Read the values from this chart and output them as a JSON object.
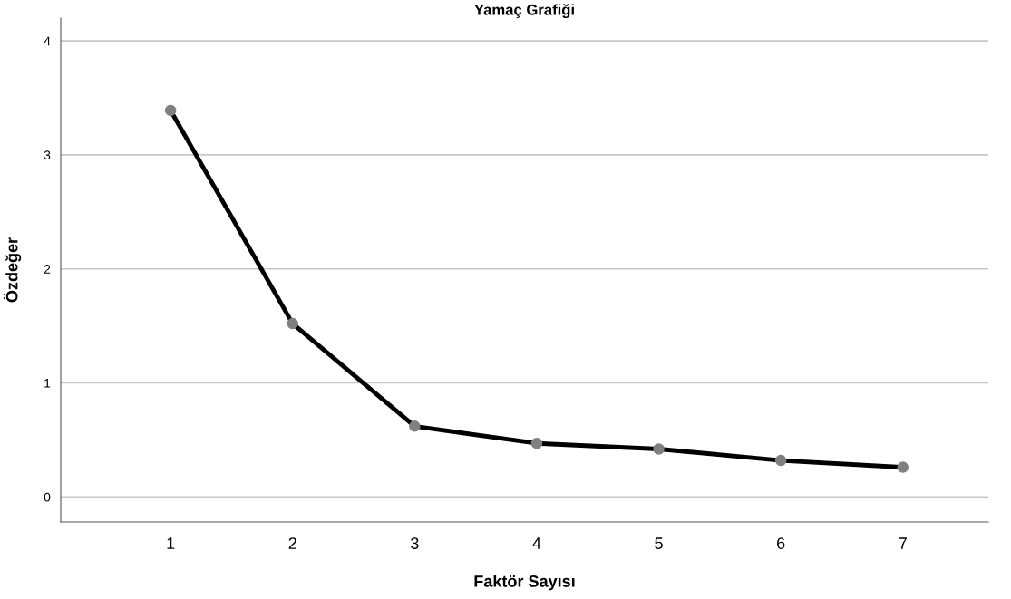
{
  "chart_data": {
    "type": "line",
    "title": "Yamaç Grafiği",
    "xlabel": "Faktör Sayısı",
    "ylabel": "Özdeğer",
    "x": [
      1,
      2,
      3,
      4,
      5,
      6,
      7
    ],
    "series": [
      {
        "color": "#000000",
        "values": [
          3.39,
          1.52,
          0.62,
          0.47,
          0.42,
          0.32,
          0.26
        ]
      }
    ],
    "marker": "circle",
    "line_style": "solid",
    "grid": "y",
    "xlim": [
      0.1,
      7.7
    ],
    "xticks": [
      1,
      2,
      3,
      4,
      5,
      6,
      7
    ],
    "ylim": [
      -0.22,
      4.2
    ],
    "yticks": [
      0,
      1,
      2,
      3,
      4
    ]
  }
}
